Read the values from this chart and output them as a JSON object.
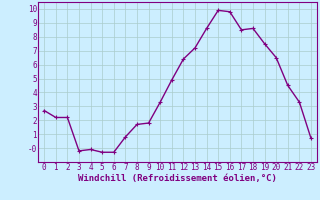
{
  "x": [
    0,
    1,
    2,
    3,
    4,
    5,
    6,
    7,
    8,
    9,
    10,
    11,
    12,
    13,
    14,
    15,
    16,
    17,
    18,
    19,
    20,
    21,
    22,
    23
  ],
  "y": [
    2.7,
    2.2,
    2.2,
    -0.2,
    -0.1,
    -0.3,
    -0.3,
    0.8,
    1.7,
    1.8,
    3.3,
    4.9,
    6.4,
    7.2,
    8.6,
    9.9,
    9.8,
    8.5,
    8.6,
    7.5,
    6.5,
    4.5,
    3.3,
    0.7
  ],
  "line_color": "#800080",
  "marker": "+",
  "marker_size": 3,
  "marker_lw": 0.8,
  "bg_color": "#cceeff",
  "grid_color": "#aacccc",
  "xlabel": "Windchill (Refroidissement éolien,°C)",
  "ylim": [
    -1.0,
    10.5
  ],
  "xlim": [
    -0.5,
    23.5
  ],
  "yticks": [
    0,
    1,
    2,
    3,
    4,
    5,
    6,
    7,
    8,
    9,
    10
  ],
  "ytick_labels": [
    "-0",
    "1",
    "2",
    "3",
    "4",
    "5",
    "6",
    "7",
    "8",
    "9",
    "10"
  ],
  "xticks": [
    0,
    1,
    2,
    3,
    4,
    5,
    6,
    7,
    8,
    9,
    10,
    11,
    12,
    13,
    14,
    15,
    16,
    17,
    18,
    19,
    20,
    21,
    22,
    23
  ],
  "tick_label_size": 5.5,
  "xlabel_size": 6.5,
  "axis_color": "#800080",
  "line_width": 1.0,
  "spine_color": "#800080"
}
